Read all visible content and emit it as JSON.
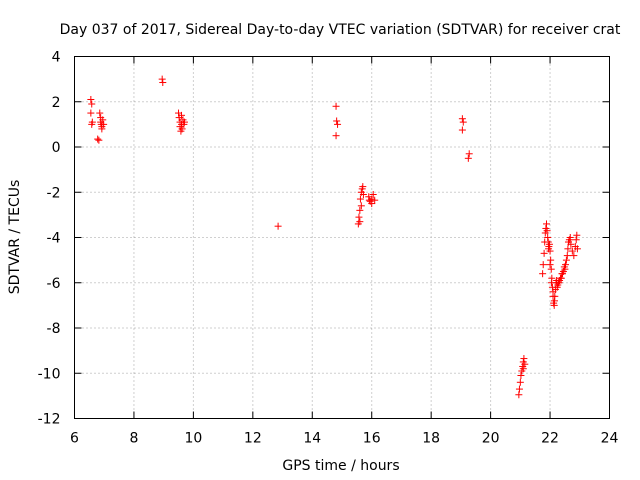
{
  "chart_data": {
    "type": "scatter",
    "title": "Day 037 of 2017, Sidereal Day-to-day VTEC variation (SDTVAR) for receiver crat",
    "xlabel": "GPS time / hours",
    "ylabel": "SDTVAR / TECUs",
    "xlim": [
      6,
      24
    ],
    "ylim": [
      -12,
      4
    ],
    "xticks": [
      "6",
      "8",
      "10",
      "12",
      "14",
      "16",
      "18",
      "20",
      "22",
      "24"
    ],
    "yticks": [
      "4",
      "2",
      "0",
      "-2",
      "-4",
      "-6",
      "-8",
      "-10",
      "-12"
    ],
    "grid": true,
    "marker": "+",
    "color": "#ff0000",
    "series": [
      {
        "name": "SDTVAR",
        "points": [
          [
            6.55,
            2.1
          ],
          [
            6.58,
            1.9
          ],
          [
            6.55,
            1.5
          ],
          [
            6.6,
            1.1
          ],
          [
            6.58,
            1.0
          ],
          [
            6.78,
            0.35
          ],
          [
            6.82,
            0.3
          ],
          [
            6.85,
            1.5
          ],
          [
            6.88,
            1.3
          ],
          [
            6.88,
            1.1
          ],
          [
            6.9,
            1.0
          ],
          [
            6.92,
            0.8
          ],
          [
            6.92,
            0.9
          ],
          [
            6.95,
            1.2
          ],
          [
            6.98,
            1.0
          ],
          [
            8.95,
            3.0
          ],
          [
            8.97,
            2.85
          ],
          [
            9.5,
            1.5
          ],
          [
            9.52,
            1.3
          ],
          [
            9.55,
            1.1
          ],
          [
            9.55,
            0.9
          ],
          [
            9.58,
            0.7
          ],
          [
            9.6,
            1.0
          ],
          [
            9.62,
            0.8
          ],
          [
            9.65,
            1.2
          ],
          [
            9.68,
            1.0
          ],
          [
            9.7,
            1.1
          ],
          [
            9.6,
            1.4
          ],
          [
            12.85,
            -3.5
          ],
          [
            14.8,
            1.8
          ],
          [
            14.82,
            1.15
          ],
          [
            14.85,
            1.0
          ],
          [
            14.8,
            0.5
          ],
          [
            15.55,
            -3.4
          ],
          [
            15.57,
            -3.1
          ],
          [
            15.6,
            -2.8
          ],
          [
            15.62,
            -2.3
          ],
          [
            15.65,
            -2.0
          ],
          [
            15.68,
            -1.85
          ],
          [
            15.7,
            -1.75
          ],
          [
            15.72,
            -2.1
          ],
          [
            15.6,
            -3.3
          ],
          [
            15.65,
            -2.6
          ],
          [
            15.9,
            -2.2
          ],
          [
            15.95,
            -2.4
          ],
          [
            16.0,
            -2.3
          ],
          [
            16.05,
            -2.1
          ],
          [
            16.1,
            -2.35
          ],
          [
            16.0,
            -2.5
          ],
          [
            15.92,
            -2.35
          ],
          [
            19.05,
            1.25
          ],
          [
            19.08,
            1.1
          ],
          [
            19.05,
            0.75
          ],
          [
            19.25,
            -0.5
          ],
          [
            19.28,
            -0.3
          ],
          [
            20.95,
            -10.95
          ],
          [
            20.97,
            -10.7
          ],
          [
            21.0,
            -10.4
          ],
          [
            21.02,
            -10.1
          ],
          [
            21.05,
            -9.9
          ],
          [
            21.08,
            -9.7
          ],
          [
            21.1,
            -9.5
          ],
          [
            21.12,
            -9.35
          ],
          [
            21.1,
            -9.8
          ],
          [
            21.15,
            -9.6
          ],
          [
            21.75,
            -5.6
          ],
          [
            21.77,
            -5.2
          ],
          [
            21.8,
            -4.7
          ],
          [
            21.82,
            -4.2
          ],
          [
            21.84,
            -3.8
          ],
          [
            21.86,
            -3.6
          ],
          [
            21.88,
            -3.4
          ],
          [
            21.9,
            -3.7
          ],
          [
            21.92,
            -4.0
          ],
          [
            21.94,
            -4.2
          ],
          [
            21.96,
            -4.4
          ],
          [
            21.98,
            -4.3
          ],
          [
            22.0,
            -4.6
          ],
          [
            22.02,
            -5.0
          ],
          [
            22.04,
            -5.4
          ],
          [
            22.06,
            -5.8
          ],
          [
            22.08,
            -6.2
          ],
          [
            22.1,
            -6.6
          ],
          [
            22.12,
            -6.9
          ],
          [
            22.14,
            -7.0
          ],
          [
            22.16,
            -6.6
          ],
          [
            22.18,
            -6.3
          ],
          [
            22.2,
            -6.0
          ],
          [
            22.22,
            -5.9
          ],
          [
            22.24,
            -6.2
          ],
          [
            22.26,
            -6.1
          ],
          [
            22.28,
            -6.0
          ],
          [
            22.3,
            -6.0
          ],
          [
            22.32,
            -5.9
          ],
          [
            22.35,
            -5.8
          ],
          [
            22.38,
            -5.8
          ],
          [
            22.4,
            -5.6
          ],
          [
            22.42,
            -5.6
          ],
          [
            22.45,
            -5.5
          ],
          [
            22.48,
            -5.3
          ],
          [
            22.5,
            -5.4
          ],
          [
            22.52,
            -5.2
          ],
          [
            22.55,
            -5.0
          ],
          [
            22.58,
            -4.8
          ],
          [
            22.6,
            -4.5
          ],
          [
            22.62,
            -4.2
          ],
          [
            22.65,
            -4.1
          ],
          [
            22.68,
            -4.0
          ],
          [
            22.7,
            -4.3
          ],
          [
            22.75,
            -4.6
          ],
          [
            22.8,
            -4.8
          ],
          [
            22.85,
            -4.4
          ],
          [
            22.88,
            -4.1
          ],
          [
            22.9,
            -3.9
          ],
          [
            22.92,
            -4.5
          ],
          [
            22.15,
            -6.8
          ],
          [
            22.05,
            -6.0
          ],
          [
            21.95,
            -4.5
          ],
          [
            22.0,
            -5.2
          ],
          [
            22.1,
            -6.4
          ]
        ]
      }
    ]
  }
}
